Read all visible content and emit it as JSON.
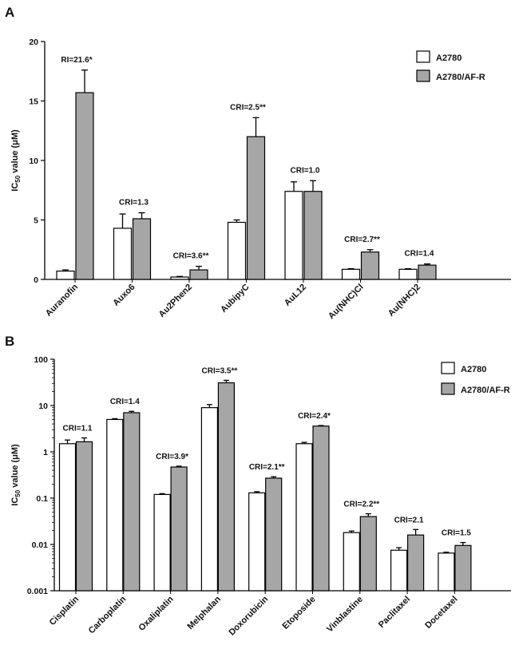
{
  "chart_data": [
    {
      "panel": "A",
      "type": "bar",
      "scale": "linear",
      "ylim": [
        0,
        20
      ],
      "yticks": [
        0,
        5,
        10,
        15,
        20
      ],
      "ylabel": "IC",
      "ylabel_sub": "50",
      "ylabel_suffix": " value (μM)",
      "legend": [
        "A2780",
        "A2780/AF-R"
      ],
      "legend_position": "top-right",
      "categories": [
        "Auranofin",
        "Auxo6",
        "Au2Phen2",
        "AubipyC",
        "AuL12",
        "Au(NHC)Cl",
        "Au(NHC)2"
      ],
      "series": [
        {
          "name": "A2780",
          "color": "#ffffff",
          "values": [
            0.7,
            4.3,
            0.2,
            4.8,
            7.4,
            0.85,
            0.85
          ],
          "errors": [
            0.1,
            1.2,
            0.05,
            0.2,
            0.8,
            0.05,
            0.05
          ]
        },
        {
          "name": "A2780/AF-R",
          "color": "#a6a6a6",
          "values": [
            15.7,
            5.1,
            0.8,
            12.0,
            7.4,
            2.3,
            1.2
          ],
          "errors": [
            1.9,
            0.5,
            0.3,
            1.6,
            0.9,
            0.2,
            0.1
          ]
        }
      ],
      "annotations": [
        "RI=21.6*",
        "CRI=1.3",
        "CRI=3.6**",
        "CRI=2.5**",
        "CRI=1.0",
        "CRI=2.7**",
        "CRI=1.4"
      ]
    },
    {
      "panel": "B",
      "type": "bar",
      "scale": "log",
      "ylim": [
        0.001,
        100
      ],
      "yticks": [
        "0.001",
        "0.01",
        "0.1",
        "1",
        "10",
        "100"
      ],
      "ylabel": "IC",
      "ylabel_sub": "50",
      "ylabel_suffix": " value (μM)",
      "legend": [
        "A2780",
        "A2780/AF-R"
      ],
      "legend_position": "top-right",
      "categories": [
        "Cisplatin",
        "Carboplatin",
        "Oxaliplatin",
        "Melphalan",
        "Doxorubicin",
        "Etoposide",
        "Vinblastine",
        "Paclitaxel",
        "Docetaxel"
      ],
      "series": [
        {
          "name": "A2780",
          "color": "#ffffff",
          "values": [
            1.5,
            5.0,
            0.12,
            9.0,
            0.13,
            1.5,
            0.018,
            0.0075,
            0.0065
          ],
          "errors_hi": [
            1.8,
            5.2,
            0.125,
            10.5,
            0.138,
            1.6,
            0.0195,
            0.0085,
            0.0068
          ]
        },
        {
          "name": "A2780/AF-R",
          "color": "#a6a6a6",
          "values": [
            1.65,
            7.0,
            0.47,
            31.0,
            0.27,
            3.6,
            0.04,
            0.016,
            0.0095
          ],
          "errors_hi": [
            2.0,
            7.5,
            0.49,
            35.0,
            0.29,
            3.7,
            0.046,
            0.021,
            0.011
          ]
        }
      ],
      "annotations": [
        "CRI=1.1",
        "CRI=1.4",
        "CRI=3.9*",
        "CRI=3.5**",
        "CRI=2.1**",
        "CRI=2.4*",
        "CRI=2.2**",
        "CRI=2.1",
        "CRI=1.5"
      ]
    }
  ]
}
